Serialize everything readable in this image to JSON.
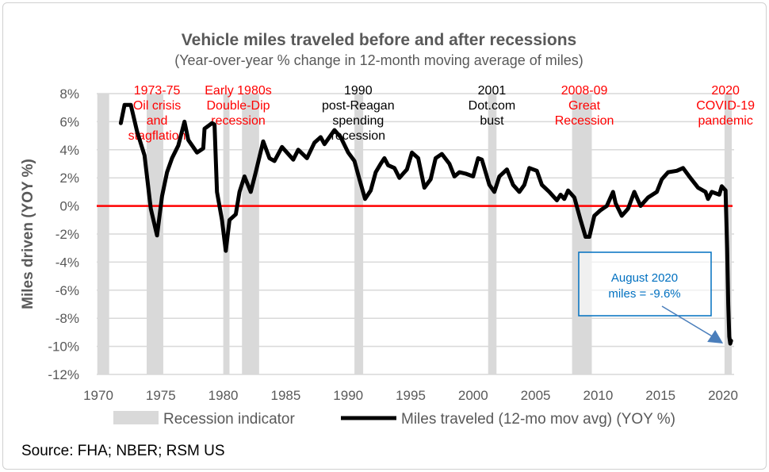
{
  "chart_data": {
    "type": "line",
    "title": "Vehicle miles traveled before and after recessions",
    "subtitle": "(Year-over-year % change in 12-month moving average of miles)",
    "ylabel": "Miles driven (YOY %)",
    "xlabel": "",
    "xlim": [
      1970,
      2020.8
    ],
    "ylim": [
      -12,
      8
    ],
    "x_ticks": [
      1970,
      1975,
      1980,
      1985,
      1990,
      1995,
      2000,
      2005,
      2010,
      2015,
      2020
    ],
    "y_ticks": [
      8,
      6,
      4,
      2,
      0,
      -2,
      -4,
      -6,
      -8,
      -10,
      -12
    ],
    "y_tick_labels": [
      "8%",
      "6%",
      "4%",
      "2%",
      "0%",
      "-2%",
      "-4%",
      "-6%",
      "-8%",
      "-10%",
      "-12%"
    ],
    "grid": true,
    "legend_position": "bottom",
    "colors": {
      "line": "#000000",
      "recession": "#d9d9d9",
      "zero_line": "#ff0000",
      "red_text": "#ff0000",
      "callout": "#0070c0",
      "arrow": "#4a7ebb"
    },
    "recessions": [
      [
        1969.92,
        1970.87
      ],
      [
        1973.87,
        1975.2
      ],
      [
        1980.0,
        1980.5
      ],
      [
        1981.5,
        1982.87
      ],
      [
        1990.5,
        1991.2
      ],
      [
        2001.2,
        2001.87
      ],
      [
        2007.92,
        2009.5
      ],
      [
        2020.12,
        2020.7
      ]
    ],
    "series": [
      {
        "name": "Miles traveled (12-mo mov avg) (YOY %)",
        "x": [
          1971.8,
          1972.1,
          1972.6,
          1973.1,
          1973.7,
          1974.2,
          1974.7,
          1975.1,
          1975.5,
          1975.9,
          1976.4,
          1976.9,
          1977.2,
          1977.9,
          1978.4,
          1978.5,
          1979.1,
          1979.3,
          1979.5,
          1979.9,
          1980.2,
          1980.5,
          1981.0,
          1981.3,
          1981.7,
          1982.2,
          1982.6,
          1983.2,
          1983.7,
          1984.1,
          1984.7,
          1985.6,
          1986.0,
          1986.7,
          1987.3,
          1987.8,
          1988.1,
          1988.9,
          1989.4,
          1990.0,
          1990.5,
          1990.9,
          1991.35,
          1991.8,
          1992.2,
          1992.6,
          1992.9,
          1993.2,
          1993.7,
          1994.1,
          1994.4,
          1994.7,
          1995.1,
          1995.6,
          1996.1,
          1996.6,
          1997.0,
          1997.5,
          1998.1,
          1998.5,
          1998.9,
          1999.4,
          2000.0,
          2000.4,
          2000.7,
          2001.3,
          2001.7,
          2002.1,
          2002.7,
          2003.2,
          2003.7,
          2004.1,
          2004.5,
          2005.1,
          2005.5,
          2006.1,
          2006.7,
          2007.0,
          2007.3,
          2007.6,
          2008.1,
          2008.6,
          2009.0,
          2009.3,
          2009.7,
          2010.2,
          2010.7,
          2011.2,
          2011.4,
          2011.9,
          2012.4,
          2012.9,
          2013.4,
          2014.0,
          2014.7,
          2015.1,
          2015.6,
          2016.3,
          2016.8,
          2017.3,
          2018.0,
          2018.6,
          2018.8,
          2019.1,
          2019.7,
          2019.9,
          2020.2,
          2020.33,
          2020.42,
          2020.5,
          2020.58,
          2020.65
        ],
        "y": [
          5.9,
          7.2,
          7.2,
          5.3,
          3.6,
          -0.2,
          -2.1,
          0.7,
          2.4,
          3.4,
          4.3,
          6.0,
          4.7,
          3.8,
          4.1,
          5.5,
          5.9,
          5.8,
          1.0,
          -1.0,
          -3.2,
          -1.0,
          -0.6,
          1.0,
          2.1,
          1.0,
          2.4,
          4.6,
          3.4,
          3.2,
          4.2,
          3.3,
          4.0,
          3.4,
          4.5,
          4.9,
          4.4,
          5.4,
          4.9,
          3.8,
          3.2,
          1.9,
          0.5,
          1.1,
          2.4,
          3.0,
          3.4,
          2.9,
          2.7,
          2.0,
          2.3,
          2.6,
          3.8,
          3.4,
          1.3,
          1.9,
          3.4,
          3.7,
          3.0,
          2.1,
          2.4,
          2.3,
          2.1,
          3.4,
          3.3,
          1.5,
          1.0,
          2.1,
          2.6,
          1.5,
          1.0,
          1.5,
          2.7,
          2.5,
          1.5,
          1.0,
          0.4,
          0.8,
          0.5,
          1.1,
          0.6,
          -1.0,
          -2.2,
          -2.2,
          -0.7,
          -0.3,
          0.0,
          1.0,
          0.2,
          -0.7,
          -0.2,
          1.0,
          0.0,
          0.6,
          1.0,
          1.9,
          2.4,
          2.5,
          2.7,
          2.1,
          1.3,
          1.0,
          0.5,
          1.0,
          0.8,
          1.4,
          1.1,
          -3.0,
          -7.0,
          -9.3,
          -9.8,
          -9.6
        ]
      }
    ],
    "annotations": [
      {
        "lines": [
          "1973-75",
          "Oil crisis",
          "and",
          "stagflation"
        ],
        "x": 1974.7,
        "color": "red"
      },
      {
        "lines": [
          "Early 1980s",
          "Double-Dip",
          "recession"
        ],
        "x": 1981.2,
        "color": "red"
      },
      {
        "lines": [
          "1990",
          "post-Reagan",
          "spending",
          "recession"
        ],
        "x": 1990.8,
        "color": "black"
      },
      {
        "lines": [
          "2001",
          "Dot.com",
          "bust"
        ],
        "x": 2001.5,
        "color": "black"
      },
      {
        "lines": [
          "2008-09",
          "Great",
          "Recession"
        ],
        "x": 2008.9,
        "color": "red"
      },
      {
        "lines": [
          "2020",
          "COVID-19",
          "pandemic"
        ],
        "x": 2020.2,
        "color": "red"
      }
    ],
    "callout": {
      "lines": [
        "August 2020",
        "miles = -9.6%"
      ],
      "target_x": 2020.58,
      "target_y": -9.8
    },
    "legend": [
      "Recession indicator",
      "Miles traveled (12-mo mov avg) (YOY %)"
    ]
  },
  "source": "Source: FHA; NBER; RSM US"
}
